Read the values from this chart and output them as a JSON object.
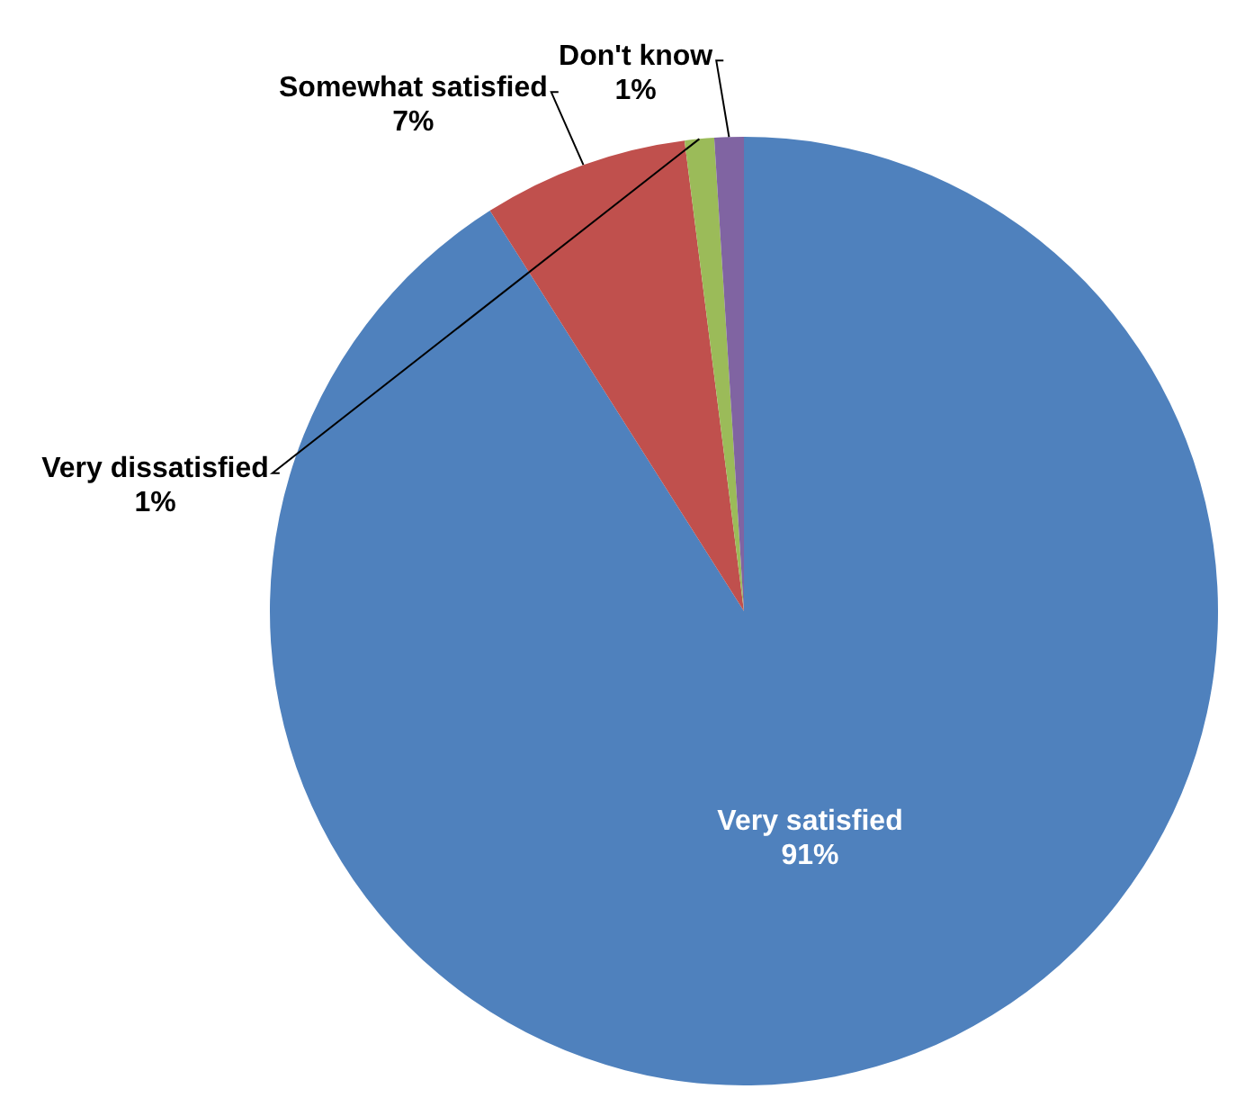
{
  "chart_data": {
    "type": "pie",
    "categories": [
      "Very satisfied",
      "Somewhat satisfied",
      "Very dissatisfied",
      "Don't know"
    ],
    "values": [
      91,
      7,
      1,
      1
    ],
    "value_labels": [
      "91%",
      "7%",
      "1%",
      "1%"
    ],
    "colors": [
      "#4f81bd",
      "#c0504d",
      "#9bbb59",
      "#8064a2"
    ],
    "legend": false
  }
}
